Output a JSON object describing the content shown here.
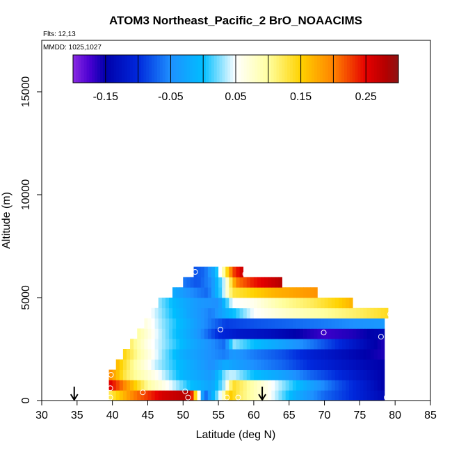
{
  "chart_data": {
    "type": "heatmap",
    "title": "ATOM3 Northeast_Pacific_2 BrO_NOAACIMS",
    "subtitle_flights": "Flts: 12,13",
    "subtitle_dates": "MMDD: 1025,1027",
    "xlabel": "Latitude (deg N)",
    "ylabel": "Altitude (m)",
    "xlim": [
      30,
      85
    ],
    "ylim": [
      0,
      17500
    ],
    "x_ticks": [
      "30",
      "35",
      "40",
      "45",
      "50",
      "55",
      "60",
      "65",
      "70",
      "75",
      "80",
      "85"
    ],
    "y_ticks": [
      "0",
      "5000",
      "10000",
      "15000"
    ],
    "colorbar": {
      "min": -0.2,
      "max": 0.3,
      "tick_labels": [
        "-0.15",
        "-0.05",
        "0.05",
        "0.15",
        "0.25"
      ],
      "tick_values": [
        -0.15,
        -0.05,
        0.05,
        0.15,
        0.25
      ]
    },
    "bands": [
      {
        "alt": 250,
        "lat": [
          39.5,
          43.0,
          47.0,
          51.0,
          53.0,
          55.5,
          56.5,
          58.0,
          62.0,
          66.0,
          70.0,
          74.0,
          78.5
        ],
        "val": [
          0.12,
          0.2,
          0.26,
          0.28,
          -0.08,
          0.06,
          0.16,
          0.12,
          0.06,
          -0.02,
          -0.07,
          -0.1,
          -0.14
        ]
      },
      {
        "alt": 750,
        "lat": [
          39.5,
          45.0,
          48.0,
          51.0,
          54.0,
          56.0,
          57.0,
          60.0,
          64.0,
          68.0,
          72.0,
          76.0,
          78.5
        ],
        "val": [
          0.26,
          0.1,
          0.05,
          0.0,
          -0.03,
          0.04,
          0.14,
          0.09,
          0.03,
          -0.03,
          -0.08,
          -0.12,
          -0.15
        ]
      },
      {
        "alt": 1250,
        "lat": [
          39.5,
          42.0,
          46.0,
          50.0,
          54.0,
          56.0,
          57.0,
          60.0,
          64.0,
          68.0,
          72.0,
          76.0,
          78.5
        ],
        "val": [
          0.2,
          0.12,
          0.06,
          -0.01,
          -0.04,
          0.03,
          0.04,
          0.0,
          -0.03,
          -0.07,
          -0.1,
          -0.13,
          -0.15
        ]
      },
      {
        "alt": 1750,
        "lat": [
          40.5,
          43.0,
          46.0,
          50.0,
          54.0,
          56.0,
          57.0,
          60.0,
          64.0,
          68.0,
          72.0,
          76.0,
          78.5
        ],
        "val": [
          0.17,
          0.1,
          0.04,
          -0.01,
          -0.05,
          -0.02,
          -0.03,
          -0.05,
          -0.07,
          -0.1,
          -0.12,
          -0.14,
          -0.15
        ]
      },
      {
        "alt": 2250,
        "lat": [
          41.5,
          44.0,
          47.0,
          50.0,
          54.0,
          56.0,
          57.0,
          60.0,
          64.0,
          68.0,
          72.0,
          76.0,
          78.5
        ],
        "val": [
          0.15,
          0.09,
          0.03,
          -0.02,
          -0.05,
          -0.06,
          -0.04,
          -0.06,
          -0.08,
          -0.11,
          -0.13,
          -0.15,
          -0.16
        ]
      },
      {
        "alt": 2750,
        "lat": [
          42.5,
          45.0,
          48.0,
          51.0,
          54.0,
          56.0,
          57.0,
          60.0,
          64.0,
          68.0,
          72.0,
          76.0,
          78.5
        ],
        "val": [
          0.12,
          0.06,
          0.02,
          -0.02,
          -0.05,
          -0.07,
          0.03,
          0.0,
          -0.03,
          -0.06,
          -0.1,
          -0.14,
          -0.16
        ]
      },
      {
        "alt": 3250,
        "lat": [
          43.5,
          46.0,
          49.0,
          52.0,
          55.0,
          58.0,
          62.0,
          66.0,
          70.0,
          74.0,
          78.5
        ],
        "val": [
          0.1,
          0.05,
          0.0,
          -0.04,
          -0.1,
          -0.12,
          -0.13,
          -0.15,
          -0.17,
          -0.16,
          -0.14
        ]
      },
      {
        "alt": 3750,
        "lat": [
          44.5,
          47.0,
          50.0,
          53.0,
          56.0,
          60.0,
          65.0,
          70.0,
          74.0,
          78.5
        ],
        "val": [
          0.07,
          0.03,
          -0.01,
          -0.05,
          -0.09,
          -0.08,
          -0.07,
          -0.06,
          -0.05,
          -0.04
        ]
      },
      {
        "alt": 4250,
        "lat": [
          45.5,
          48.0,
          51.0,
          54.0,
          56.0,
          60.0,
          65.0,
          70.0,
          75.0,
          79.0
        ],
        "val": [
          0.05,
          0.01,
          -0.03,
          -0.06,
          -0.02,
          0.05,
          0.08,
          0.1,
          0.12,
          0.14
        ]
      },
      {
        "alt": 4750,
        "lat": [
          46.5,
          49.0,
          52.0,
          55.0,
          57.0,
          60.0,
          64.0,
          68.0,
          72.0,
          74.0
        ],
        "val": [
          0.03,
          -0.01,
          -0.04,
          -0.05,
          0.05,
          0.06,
          0.1,
          0.12,
          0.15,
          0.17
        ]
      },
      {
        "alt": 5250,
        "lat": [
          48.5,
          51.0,
          53.5,
          55.5,
          57.0,
          60.0,
          63.0,
          66.0,
          69.0
        ],
        "val": [
          -0.02,
          -0.05,
          -0.07,
          0.02,
          0.13,
          0.15,
          0.17,
          0.18,
          0.19
        ]
      },
      {
        "alt": 5750,
        "lat": [
          50.0,
          52.0,
          54.0,
          56.0,
          57.5,
          60.0,
          62.0,
          64.0
        ],
        "val": [
          -0.06,
          -0.08,
          -0.05,
          0.05,
          0.2,
          0.24,
          0.26,
          0.28
        ]
      },
      {
        "alt": 6250,
        "lat": [
          51.5,
          53.0,
          54.5,
          56.0,
          57.0,
          58.5
        ],
        "val": [
          -0.08,
          -0.07,
          -0.02,
          0.12,
          0.22,
          0.27
        ]
      }
    ],
    "points": [
      {
        "lat": 39.7,
        "alt": 150
      },
      {
        "lat": 39.7,
        "alt": 600
      },
      {
        "lat": 39.8,
        "alt": 1250
      },
      {
        "lat": 44.3,
        "alt": 400
      },
      {
        "lat": 50.3,
        "alt": 450
      },
      {
        "lat": 50.7,
        "alt": 150
      },
      {
        "lat": 56.2,
        "alt": 150
      },
      {
        "lat": 57.8,
        "alt": 150
      },
      {
        "lat": 55.3,
        "alt": 3450
      },
      {
        "lat": 51.7,
        "alt": 6250
      },
      {
        "lat": 58.8,
        "alt": 6150
      },
      {
        "lat": 69.9,
        "alt": 3300
      },
      {
        "lat": 78.0,
        "alt": 3100
      },
      {
        "lat": 78.8,
        "alt": 150
      },
      {
        "lat": 79.3,
        "alt": 4200
      }
    ],
    "arrows": [
      {
        "lat": 34.6,
        "alt": 0
      },
      {
        "lat": 61.2,
        "alt": 0
      }
    ]
  }
}
